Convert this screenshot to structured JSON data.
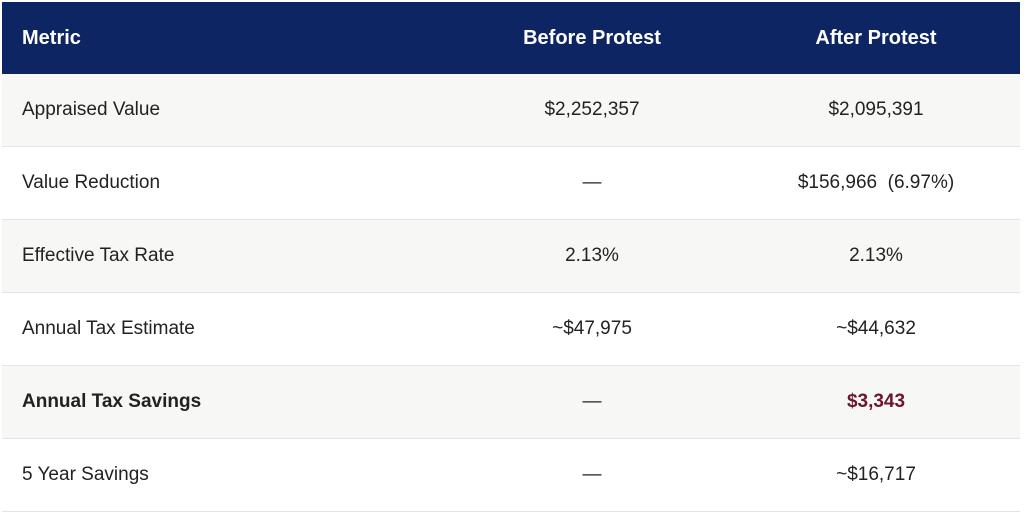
{
  "header": {
    "metric": "Metric",
    "before": "Before Protest",
    "after": "After Protest"
  },
  "colors": {
    "header_bg": "#0e2563",
    "highlight": "#6b1530",
    "alt_row_bg": "#f7f7f6"
  },
  "rows": [
    {
      "metric": "Appraised Value",
      "before": "$2,252,357",
      "after": "$2,095,391"
    },
    {
      "metric": "Value Reduction",
      "before": "—",
      "after": "$156,966  (6.97%)"
    },
    {
      "metric": "Effective Tax Rate",
      "before": "2.13%",
      "after": "2.13%"
    },
    {
      "metric": "Annual Tax Estimate",
      "before": "~$47,975",
      "after": "~$44,632"
    },
    {
      "metric": "Annual Tax Savings",
      "before": "—",
      "after": "$3,343"
    },
    {
      "metric": "5 Year Savings",
      "before": "—",
      "after": "~$16,717"
    }
  ]
}
